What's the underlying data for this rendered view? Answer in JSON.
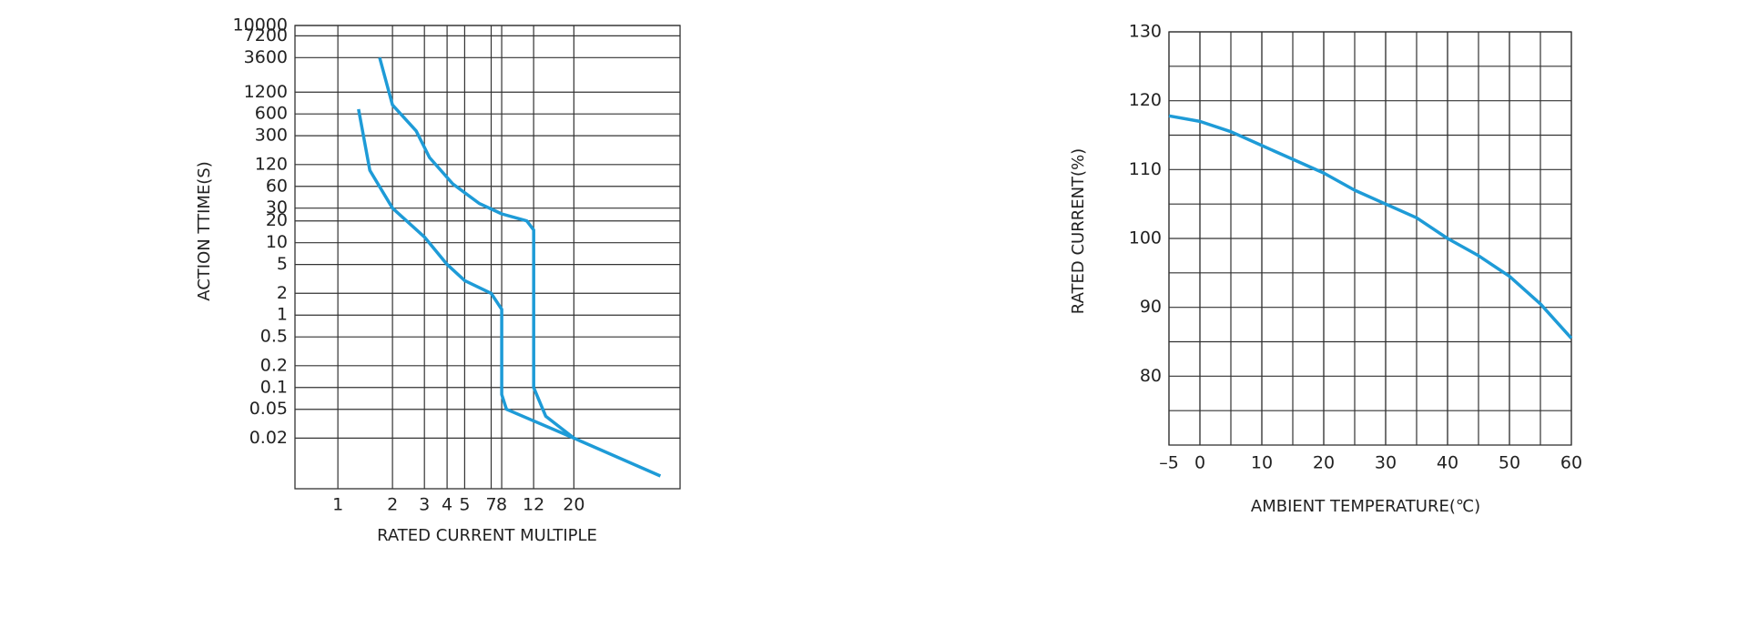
{
  "chart_data": [
    {
      "type": "line",
      "xlabel": "RATED CURRENT MULTIPLE",
      "ylabel": "ACTION TTIME(S)",
      "xscale": "log",
      "yscale": "log",
      "grid": true,
      "xlim": [
        0.58,
        77
      ],
      "ylim": [
        0.004,
        10000
      ],
      "xticks": [
        1,
        2,
        3,
        4,
        5,
        7,
        8,
        12,
        20
      ],
      "yticks": [
        10000,
        7200,
        3600,
        1200,
        600,
        300,
        120,
        60,
        30,
        20,
        10,
        5,
        2,
        1,
        0.5,
        0.2,
        0.1,
        0.05,
        0.02
      ],
      "series": [
        {
          "color": "#1e9bd7",
          "x": [
            1.3,
            1.5,
            2,
            3,
            4,
            5,
            7,
            8,
            8,
            8.5,
            20,
            60
          ],
          "values": [
            700,
            100,
            30,
            12,
            5,
            3,
            2,
            1.2,
            0.08,
            0.05,
            0.02,
            0.006
          ]
        },
        {
          "color": "#1e9bd7",
          "x": [
            1.7,
            2,
            2.7,
            3.2,
            4.3,
            6,
            8,
            11,
            12,
            12,
            14,
            20
          ],
          "values": [
            3600,
            800,
            350,
            150,
            65,
            35,
            25,
            20,
            15,
            0.1,
            0.04,
            0.02
          ]
        }
      ]
    },
    {
      "type": "line",
      "xlabel": "AMBIENT TEMPERATURE(℃)",
      "ylabel": "RATED CURRENT(%)",
      "grid": true,
      "xlim": [
        -5,
        60
      ],
      "ylim": [
        70,
        130
      ],
      "xticks": [
        {
          "value": -5,
          "label": "–5"
        },
        0,
        10,
        20,
        30,
        40,
        50,
        60
      ],
      "yticks": [
        80,
        90,
        100,
        110,
        120,
        130
      ],
      "xgrid": [
        0,
        5,
        10,
        15,
        20,
        25,
        30,
        35,
        40,
        45,
        50,
        55
      ],
      "ygrid": [
        75,
        85,
        95,
        105,
        115,
        125
      ],
      "series": [
        {
          "color": "#1e9bd7",
          "x": [
            -5,
            0,
            5,
            10,
            15,
            20,
            25,
            30,
            35,
            40,
            45,
            50,
            55,
            60
          ],
          "values": [
            117.8,
            117,
            115.5,
            113.5,
            111.5,
            109.5,
            107,
            105,
            103,
            100,
            97.5,
            94.5,
            90.5,
            85.5
          ]
        }
      ]
    }
  ]
}
